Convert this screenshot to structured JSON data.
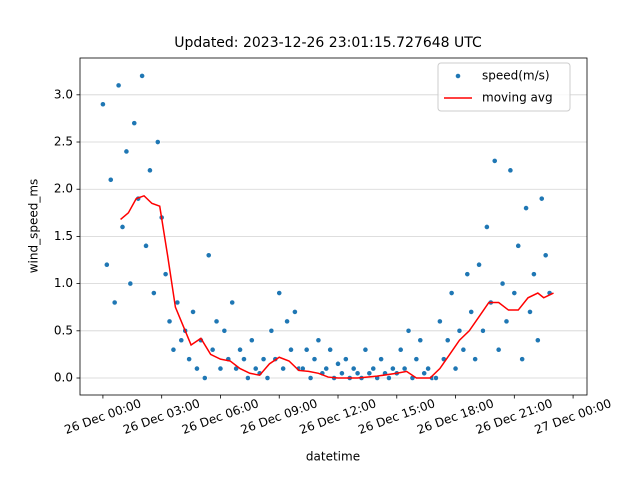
{
  "chart_data": {
    "type": "scatter",
    "title": "Updated: 2023-12-26 23:01:15.727648 UTC",
    "x_label": "datetime",
    "y_label": "wind_speed_ms",
    "xlim": [
      -1.17,
      24.71
    ],
    "ylim": [
      -0.18,
      3.39
    ],
    "xticks": [
      {
        "value": 0,
        "label": "26 Dec 00:00"
      },
      {
        "value": 3,
        "label": "26 Dec 03:00"
      },
      {
        "value": 6,
        "label": "26 Dec 06:00"
      },
      {
        "value": 9,
        "label": "26 Dec 09:00"
      },
      {
        "value": 12,
        "label": "26 Dec 12:00"
      },
      {
        "value": 15,
        "label": "26 Dec 15:00"
      },
      {
        "value": 18,
        "label": "26 Dec 18:00"
      },
      {
        "value": 21,
        "label": "26 Dec 21:00"
      },
      {
        "value": 24,
        "label": "27 Dec 00:00"
      }
    ],
    "yticks": [
      {
        "value": 0,
        "label": "0.0"
      },
      0.5,
      {
        "value": 1,
        "label": "1.0"
      },
      1.5,
      {
        "value": 2,
        "label": "2.0"
      },
      2.5,
      {
        "value": 3,
        "label": "3.0"
      }
    ],
    "grid": "y",
    "legend": "upper right",
    "series": [
      {
        "name": "speed(m/s)",
        "type": "scatter",
        "color": "#1f77b4",
        "x": [
          0,
          0.2,
          0.4,
          0.6,
          0.8,
          1,
          1.2,
          1.4,
          1.6,
          1.8,
          2,
          2.2,
          2.4,
          2.6,
          2.8,
          3,
          3.2,
          3.4,
          3.6,
          3.8,
          4,
          4.2,
          4.4,
          4.6,
          4.8,
          5,
          5.2,
          5.4,
          5.6,
          5.8,
          6,
          6.2,
          6.4,
          6.6,
          6.8,
          7,
          7.2,
          7.4,
          7.6,
          7.8,
          8,
          8.2,
          8.4,
          8.6,
          8.8,
          9,
          9.2,
          9.4,
          9.6,
          9.8,
          10,
          10.2,
          10.4,
          10.6,
          10.8,
          11,
          11.2,
          11.4,
          11.6,
          11.8,
          12,
          12.2,
          12.4,
          12.6,
          12.8,
          13,
          13.2,
          13.4,
          13.6,
          13.8,
          14,
          14.2,
          14.4,
          14.6,
          14.8,
          15,
          15.2,
          15.4,
          15.6,
          15.8,
          16,
          16.2,
          16.4,
          16.6,
          16.8,
          17,
          17.2,
          17.4,
          17.6,
          17.8,
          18,
          18.2,
          18.4,
          18.6,
          18.8,
          19,
          19.2,
          19.4,
          19.6,
          19.8,
          20,
          20.2,
          20.4,
          20.6,
          20.8,
          21,
          21.2,
          21.4,
          21.6,
          21.8,
          22,
          22.2,
          22.4,
          22.6,
          22.8
        ],
        "values": [
          2.9,
          1.2,
          2.1,
          0.8,
          3.1,
          1.6,
          2.4,
          1.0,
          2.7,
          1.9,
          3.2,
          1.4,
          2.2,
          0.9,
          2.5,
          1.7,
          1.1,
          0.6,
          0.3,
          0.8,
          0.4,
          0.5,
          0.2,
          0.7,
          0.1,
          0.4,
          0.0,
          1.3,
          0.3,
          0.6,
          0.1,
          0.5,
          0.2,
          0.8,
          0.1,
          0.3,
          0.2,
          0.0,
          0.4,
          0.1,
          0.05,
          0.2,
          0.0,
          0.5,
          0.2,
          0.9,
          0.1,
          0.6,
          0.3,
          0.7,
          0.1,
          0.1,
          0.3,
          0.0,
          0.2,
          0.4,
          0.05,
          0.1,
          0.3,
          0.0,
          0.15,
          0.05,
          0.2,
          0.0,
          0.1,
          0.05,
          0.0,
          0.3,
          0.05,
          0.1,
          0.0,
          0.2,
          0.05,
          0.0,
          0.1,
          0.05,
          0.3,
          0.1,
          0.5,
          0.0,
          0.2,
          0.4,
          0.05,
          0.1,
          0.0,
          0.0,
          0.6,
          0.2,
          0.4,
          0.9,
          0.1,
          0.5,
          0.3,
          1.1,
          0.7,
          0.2,
          1.2,
          0.5,
          1.6,
          0.8,
          2.3,
          0.3,
          1.0,
          0.6,
          2.2,
          0.9,
          1.4,
          0.2,
          1.8,
          0.7,
          1.1,
          0.4,
          1.9,
          1.3,
          0.9
        ]
      },
      {
        "name": "moving avg",
        "type": "line",
        "color": "#ff0000",
        "x": [
          0.9,
          1.3,
          1.7,
          2.1,
          2.5,
          2.9,
          3.3,
          3.7,
          4.1,
          4.5,
          5.0,
          5.5,
          6.0,
          6.5,
          7.0,
          7.5,
          8.0,
          8.5,
          9.0,
          9.5,
          10.0,
          10.5,
          11.0,
          11.5,
          12.0,
          13.0,
          14.0,
          15.0,
          15.5,
          16.0,
          16.7,
          17.2,
          17.7,
          18.2,
          18.7,
          19.2,
          19.7,
          20.2,
          20.7,
          21.2,
          21.7,
          22.2,
          22.5,
          23.0
        ],
        "values": [
          1.68,
          1.75,
          1.9,
          1.93,
          1.85,
          1.82,
          1.3,
          0.75,
          0.55,
          0.35,
          0.42,
          0.25,
          0.2,
          0.18,
          0.1,
          0.05,
          0.03,
          0.15,
          0.22,
          0.18,
          0.08,
          0.07,
          0.05,
          0.01,
          0.0,
          0.0,
          0.02,
          0.05,
          0.07,
          0.0,
          0.0,
          0.1,
          0.25,
          0.4,
          0.5,
          0.65,
          0.8,
          0.8,
          0.72,
          0.72,
          0.85,
          0.9,
          0.85,
          0.9
        ]
      }
    ]
  }
}
